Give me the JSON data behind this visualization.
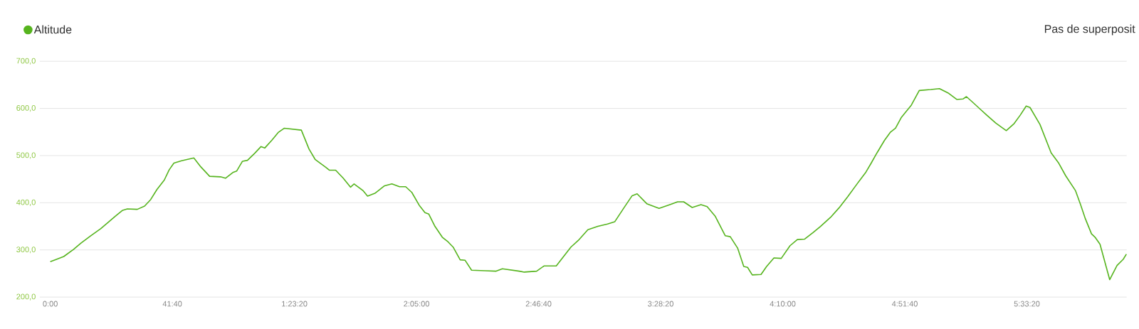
{
  "chart_data": {
    "type": "line",
    "x": [
      0,
      2.1,
      4.6,
      7.9,
      10.4,
      13.8,
      17.2,
      19.7,
      22.1,
      24.7,
      26.3,
      29.7,
      32.2,
      34.3,
      36.4,
      38.9,
      40.6,
      42.2,
      44.8,
      49.0,
      51.4,
      54.4,
      58.1,
      59.8,
      62.3,
      63.6,
      65.6,
      67.3,
      69.8,
      71.9,
      73.2,
      75.7,
      77.8,
      79.9,
      85.7,
      88.3,
      90.4,
      94.1,
      95.3,
      97.4,
      100.0,
      102.5,
      103.7,
      106.7,
      108.3,
      110.8,
      114.1,
      116.6,
      119.2,
      121.3,
      123.4,
      125.9,
      127.9,
      129.2,
      131.3,
      133.8,
      135.8,
      137.5,
      139.9,
      141.6,
      143.8,
      148.4,
      152.2,
      154.3,
      160.1,
      161.8,
      166.0,
      168.5,
      172.7,
      177.7,
      180.2,
      183.5,
      186.9,
      190.2,
      192.7,
      196.1,
      198.6,
      200.3,
      203.6,
      207.8,
      212.0,
      214.1,
      216.2,
      219.1,
      222.1,
      224.2,
      227.0,
      230.4,
      232.1,
      234.6,
      236.7,
      238.0,
      239.6,
      242.6,
      244.5,
      247.0,
      249.5,
      252.5,
      255.0,
      257.5,
      260.4,
      262.9,
      266.3,
      269.2,
      272.2,
      275.5,
      278.4,
      280.1,
      282.2,
      284.7,
      286.8,
      288.5,
      290.5,
      293.9,
      296.6,
      300.5,
      303.5,
      306.4,
      309.4,
      311.5,
      312.7,
      315.2,
      317.3,
      319.8,
      322.7,
      326.3,
      329.0,
      331.1,
      333.1,
      334.4,
      337.8,
      341.6,
      344.1,
      346.6,
      349.9,
      351.6,
      353.3,
      355.4,
      356.6,
      358.3,
      361.6,
      364.1,
      366.2,
      367.3
    ],
    "series": [
      {
        "name": "Altitude",
        "color": "#56b41e",
        "values": [
          275,
          280,
          286,
          301,
          314,
          330,
          345,
          358,
          371,
          384,
          387,
          386,
          393,
          407,
          428,
          448,
          470,
          484,
          489,
          495,
          476,
          456,
          455,
          452,
          464,
          467,
          488,
          490,
          505,
          519,
          516,
          533,
          549,
          558,
          554,
          514,
          492,
          475,
          469,
          469,
          452,
          433,
          440,
          426,
          414,
          420,
          436,
          440,
          434,
          434,
          422,
          395,
          379,
          376,
          350,
          327,
          317,
          306,
          279,
          278,
          257,
          256,
          255,
          260,
          255,
          253,
          255,
          266,
          266,
          306,
          320,
          343,
          350,
          355,
          360,
          392,
          415,
          419,
          398,
          388,
          397,
          402,
          402,
          390,
          396,
          392,
          371,
          330,
          328,
          304,
          265,
          263,
          247,
          248,
          265,
          283,
          282,
          309,
          322,
          323,
          337,
          350,
          369,
          389,
          413,
          441,
          465,
          483,
          506,
          532,
          550,
          558,
          581,
          607,
          638,
          640,
          642,
          633,
          619,
          620,
          625,
          611,
          599,
          585,
          569,
          553,
          568,
          586,
          605,
          602,
          566,
          506,
          485,
          457,
          426,
          397,
          366,
          334,
          327,
          312,
          237,
          267,
          280,
          291
        ]
      }
    ],
    "xlim": [
      -3.6,
      367.4
    ],
    "xticks": [
      {
        "value": 0,
        "label": "0:00"
      },
      {
        "value": 41.6667,
        "label": "41:40"
      },
      {
        "value": 83.3333,
        "label": "1:23:20"
      },
      {
        "value": 125,
        "label": "2:05:00"
      },
      {
        "value": 166.6667,
        "label": "2:46:40"
      },
      {
        "value": 208.3333,
        "label": "3:28:20"
      },
      {
        "value": 250,
        "label": "4:10:00"
      },
      {
        "value": 291.6667,
        "label": "4:51:40"
      },
      {
        "value": 333.3333,
        "label": "5:33:20"
      }
    ],
    "ylim": [
      200,
      700
    ],
    "yticks": [
      {
        "value": 200,
        "label": "200,0"
      },
      {
        "value": 300,
        "label": "300,0"
      },
      {
        "value": 400,
        "label": "400,0"
      },
      {
        "value": 500,
        "label": "500,0"
      },
      {
        "value": 600,
        "label": "600,0"
      },
      {
        "value": 700,
        "label": "700,0"
      }
    ],
    "grid": "y",
    "legend": "top left",
    "annotations": [
      "Pas de superposit"
    ]
  }
}
